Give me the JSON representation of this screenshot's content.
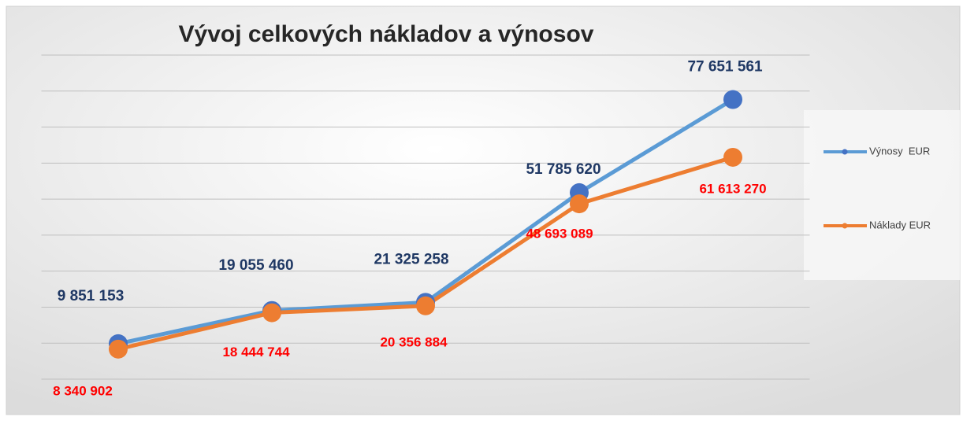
{
  "chart_data": {
    "type": "line",
    "title": "Vývoj celkových nákladov a výnosov",
    "categories": [
      null,
      null,
      null,
      null,
      null
    ],
    "series": [
      {
        "name": "Výnosy  EUR",
        "color": "#5b9bd5",
        "marker_color": "#4472c4",
        "label_color": "#1f3864",
        "values": [
          9851153,
          19055460,
          21325258,
          51785620,
          77651561
        ],
        "value_labels": [
          "9 851 153",
          "19 055 460",
          "21 325 258",
          "51 785 620",
          "77 651 561"
        ]
      },
      {
        "name": "Náklady EUR",
        "color": "#ed7d31",
        "marker_color": "#ed7d31",
        "label_color": "#ff0000",
        "values": [
          8340902,
          18444744,
          20356884,
          48693089,
          61613270
        ],
        "value_labels": [
          "8 340 902",
          "18 444 744",
          "20 356 884",
          "48 693 089",
          "61 613 270"
        ]
      }
    ],
    "ylim": [
      0,
      90000000
    ],
    "yticks": [
      0,
      10000000,
      20000000,
      30000000,
      40000000,
      50000000,
      60000000,
      70000000,
      80000000,
      90000000
    ],
    "grid": true,
    "legend": "right"
  }
}
